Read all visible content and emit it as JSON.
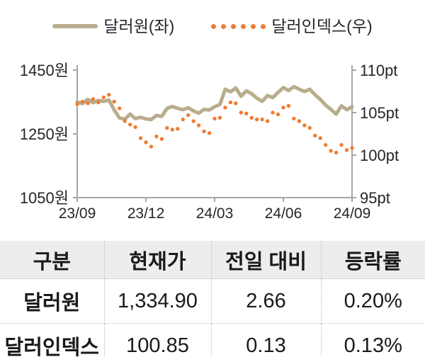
{
  "legend": {
    "items": [
      {
        "label": "달러원(좌)",
        "swatch": "solid-line"
      },
      {
        "label": "달러인덱스(우)",
        "swatch": "dotted-line"
      }
    ]
  },
  "chart_data": {
    "type": "line",
    "title": "",
    "x_axis": {
      "tick_labels": [
        "23/09",
        "23/12",
        "24/03",
        "24/06",
        "24/09"
      ]
    },
    "left_axis": {
      "label": "달러원",
      "unit": "원",
      "tick_labels": [
        "1450원",
        "1250원",
        "1050원"
      ],
      "tick_values": [
        1450,
        1250,
        1050
      ],
      "min": 1050,
      "max": 1450
    },
    "right_axis": {
      "label": "달러인덱스",
      "unit": "pt",
      "tick_labels": [
        "110pt",
        "105pt",
        "100pt",
        "95pt"
      ],
      "tick_values": [
        110,
        105,
        100,
        95
      ],
      "min": 95,
      "max": 110
    },
    "grid": false,
    "legend_position": "top",
    "series": [
      {
        "name": "달러원(좌)",
        "axis": "left",
        "style": "solid",
        "color": "#B9AC8D",
        "values": [
          1350,
          1345,
          1358,
          1348,
          1355,
          1352,
          1356,
          1325,
          1300,
          1296,
          1312,
          1298,
          1302,
          1297,
          1295,
          1308,
          1305,
          1330,
          1336,
          1330,
          1326,
          1332,
          1322,
          1315,
          1327,
          1325,
          1335,
          1342,
          1390,
          1382,
          1394,
          1368,
          1385,
          1376,
          1362,
          1352,
          1370,
          1364,
          1380,
          1395,
          1386,
          1398,
          1390,
          1383,
          1390,
          1373,
          1358,
          1340,
          1327,
          1312,
          1338,
          1326,
          1335
        ]
      },
      {
        "name": "달러인덱스(우)",
        "axis": "right",
        "style": "dotted",
        "color": "#ED7D31",
        "values": [
          106.0,
          106.3,
          106.1,
          106.6,
          106.2,
          106.8,
          107.1,
          106.3,
          105.5,
          104.0,
          103.6,
          103.3,
          102.0,
          101.5,
          101.0,
          102.2,
          101.9,
          103.2,
          103.0,
          103.1,
          104.2,
          104.7,
          104.0,
          103.5,
          102.8,
          102.6,
          104.3,
          104.4,
          105.6,
          106.2,
          106.1,
          105.0,
          104.9,
          104.4,
          104.2,
          104.2,
          104.0,
          105.0,
          104.8,
          105.6,
          105.8,
          104.3,
          104.0,
          103.5,
          103.2,
          102.3,
          102.0,
          101.2,
          100.5,
          100.3,
          101.2,
          100.6,
          100.85
        ]
      }
    ]
  },
  "table": {
    "headers": [
      "구분",
      "현재가",
      "전일 대비",
      "등락률"
    ],
    "rows": [
      {
        "cells": [
          "달러원",
          "1,334.90",
          "2.66",
          "0.20%"
        ]
      },
      {
        "cells": [
          "달러인덱스",
          "100.85",
          "0.13",
          "0.13%"
        ]
      }
    ]
  },
  "colors": {
    "krw_line": "#B9AC8D",
    "dxy_dots": "#ED7D31",
    "axis": "#A6A6A6",
    "text": "#262626",
    "table_header_bg": "#EDEDED",
    "table_border": "#BFBFBF"
  }
}
